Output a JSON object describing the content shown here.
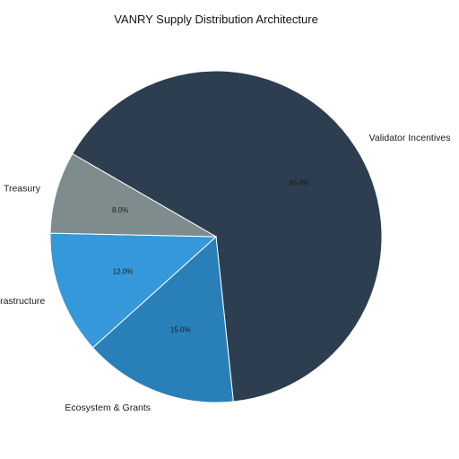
{
  "chart_data": {
    "type": "pie",
    "title": "VANRY Supply Distribution Architecture",
    "start_angle_deg": 150,
    "direction": "clockwise",
    "slices": [
      {
        "label": "Validator Incentives",
        "value": 65.0,
        "display": "65.0%",
        "color": "#2c3e50"
      },
      {
        "label": "Ecosystem & Grants",
        "value": 15.0,
        "display": "15.0%",
        "color": "#2980b9"
      },
      {
        "label": "R&D / Infrastructure",
        "value": 12.0,
        "display": "12.0%",
        "color": "#3498db"
      },
      {
        "label": "Treasury",
        "value": 8.0,
        "display": "8.0%",
        "color": "#7f8c8d"
      }
    ],
    "slice_edge_color": "#ffffff"
  }
}
